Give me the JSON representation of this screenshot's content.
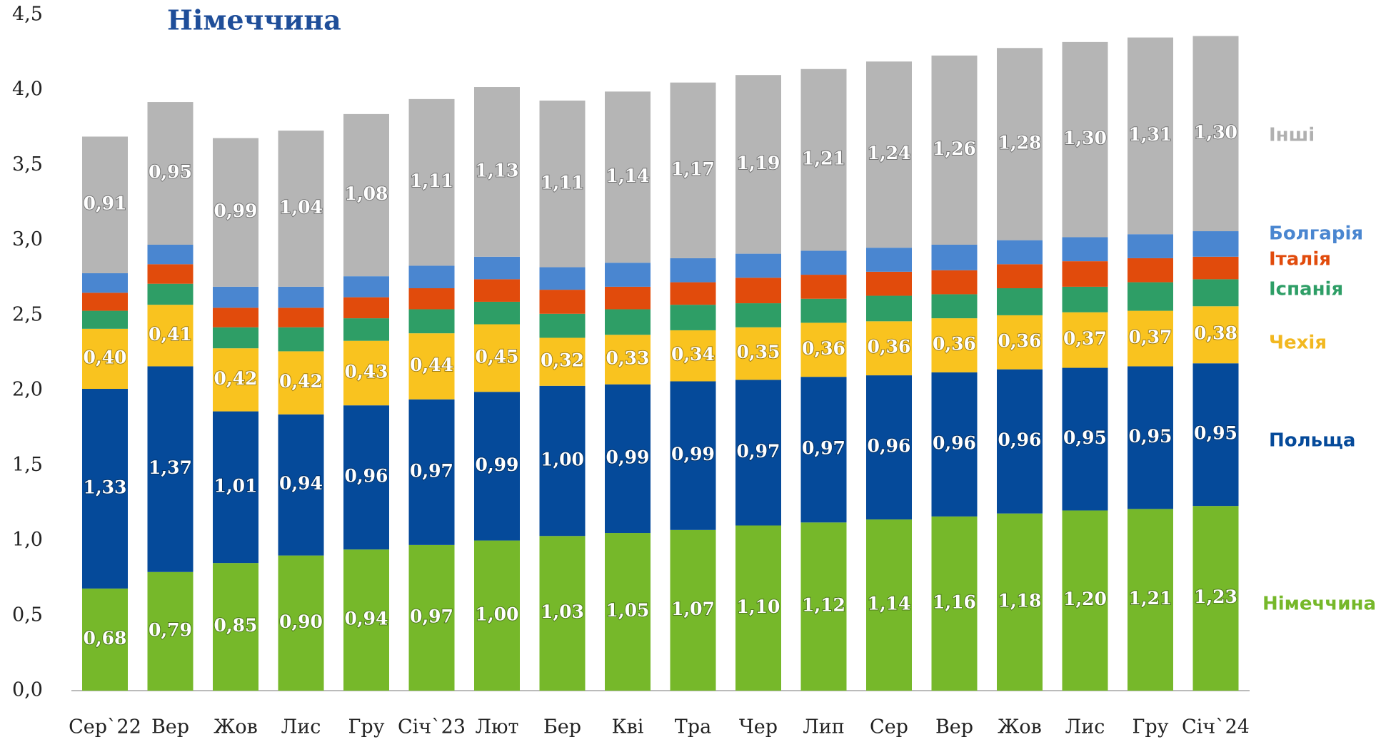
{
  "chart_data": {
    "type": "stacked_bar",
    "title": "Німеччина",
    "categories": [
      "Сер`22",
      "Вер",
      "Жов",
      "Лис",
      "Гру",
      "Січ`23",
      "Лют",
      "Бер",
      "Кві",
      "Тра",
      "Чер",
      "Лип",
      "Сер",
      "Вер",
      "Жов",
      "Лис",
      "Гру",
      "Січ`24"
    ],
    "series": [
      {
        "name": "Німеччина",
        "color": "#76b82a",
        "values": [
          0.68,
          0.79,
          0.85,
          0.9,
          0.94,
          0.97,
          1.0,
          1.03,
          1.05,
          1.07,
          1.1,
          1.12,
          1.14,
          1.16,
          1.18,
          1.2,
          1.21,
          1.23
        ],
        "value_labels": [
          "0,68",
          "0,79",
          "0,85",
          "0,90",
          "0,94",
          "0,97",
          "1,00",
          "1,03",
          "1,05",
          "1,07",
          "1,10",
          "1,12",
          "1,14",
          "1,16",
          "1,18",
          "1,20",
          "1,21",
          "1,23"
        ]
      },
      {
        "name": "Польща",
        "color": "#054a9a",
        "values": [
          1.33,
          1.37,
          1.01,
          0.94,
          0.96,
          0.97,
          0.99,
          1.0,
          0.99,
          0.99,
          0.97,
          0.97,
          0.96,
          0.96,
          0.96,
          0.95,
          0.95,
          0.95
        ],
        "value_labels": [
          "1,33",
          "1,37",
          "1,01",
          "0,94",
          "0,96",
          "0,97",
          "0,99",
          "1,00",
          "0,99",
          "0,99",
          "0,97",
          "0,97",
          "0,96",
          "0,96",
          "0,96",
          "0,95",
          "0,95",
          "0,95"
        ]
      },
      {
        "name": "Чехія",
        "color": "#f9c31f",
        "values": [
          0.4,
          0.41,
          0.42,
          0.42,
          0.43,
          0.44,
          0.45,
          0.32,
          0.33,
          0.34,
          0.35,
          0.36,
          0.36,
          0.36,
          0.36,
          0.37,
          0.37,
          0.38
        ],
        "value_labels": [
          "0,40",
          "0,41",
          "0,42",
          "0,42",
          "0,43",
          "0,44",
          "0,45",
          "0,32",
          "0,33",
          "0,34",
          "0,35",
          "0,36",
          "0,36",
          "0,36",
          "0,36",
          "0,37",
          "0,37",
          "0,38"
        ]
      },
      {
        "name": "Іспанія",
        "color": "#2e9e66",
        "values": [
          0.12,
          0.14,
          0.14,
          0.16,
          0.15,
          0.16,
          0.15,
          0.16,
          0.17,
          0.17,
          0.16,
          0.16,
          0.17,
          0.16,
          0.18,
          0.17,
          0.19,
          0.18
        ]
      },
      {
        "name": "Італія",
        "color": "#e14b0c",
        "values": [
          0.12,
          0.13,
          0.13,
          0.13,
          0.14,
          0.14,
          0.15,
          0.16,
          0.15,
          0.15,
          0.17,
          0.16,
          0.16,
          0.16,
          0.16,
          0.17,
          0.16,
          0.15
        ]
      },
      {
        "name": "Болгарія",
        "color": "#4a86d0",
        "values": [
          0.13,
          0.13,
          0.14,
          0.14,
          0.14,
          0.15,
          0.15,
          0.15,
          0.16,
          0.16,
          0.16,
          0.16,
          0.16,
          0.17,
          0.16,
          0.16,
          0.16,
          0.17
        ]
      },
      {
        "name": "Інші",
        "color": "#b5b5b5",
        "values": [
          0.91,
          0.95,
          0.99,
          1.04,
          1.08,
          1.11,
          1.13,
          1.11,
          1.14,
          1.17,
          1.19,
          1.21,
          1.24,
          1.26,
          1.28,
          1.3,
          1.31,
          1.3
        ],
        "value_labels": [
          "0,91",
          "0,95",
          "0,99",
          "1,04",
          "1,08",
          "1,11",
          "1,13",
          "1,11",
          "1,14",
          "1,17",
          "1,19",
          "1,21",
          "1,24",
          "1,26",
          "1,28",
          "1,30",
          "1,31",
          "1,30"
        ]
      }
    ],
    "ylim": [
      0,
      4.5
    ],
    "yticks": [
      {
        "value": 0,
        "label": "0,0"
      },
      {
        "value": 0.5,
        "label": "0,5"
      },
      {
        "value": 1,
        "label": "1,0"
      },
      {
        "value": 1.5,
        "label": "1,5"
      },
      {
        "value": 2,
        "label": "2,0"
      },
      {
        "value": 2.5,
        "label": "2,5"
      },
      {
        "value": 3,
        "label": "3,0"
      },
      {
        "value": 3.5,
        "label": "3,5"
      },
      {
        "value": 4,
        "label": "4,0"
      },
      {
        "value": 4.5,
        "label": "4,5"
      }
    ],
    "grid": false
  }
}
